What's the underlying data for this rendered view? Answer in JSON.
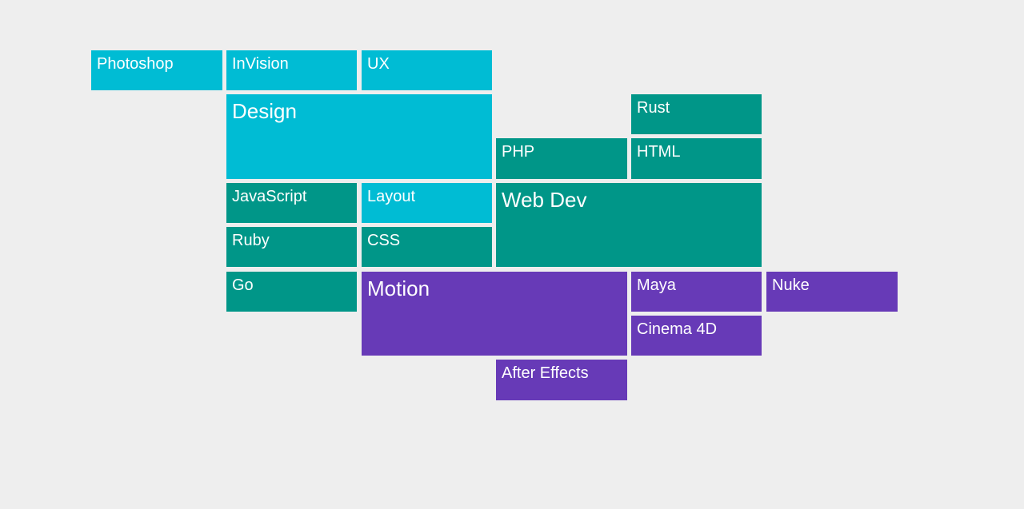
{
  "colors": {
    "design": "#00bcd4",
    "webdev": "#009688",
    "motion": "#673ab7",
    "background": "#eeeeee",
    "text": "#ffffff"
  },
  "tiles": {
    "photoshop": "Photoshop",
    "invision": "InVision",
    "ux": "UX",
    "design": "Design",
    "rust": "Rust",
    "php": "PHP",
    "html": "HTML",
    "javascript": "JavaScript",
    "layout": "Layout",
    "webdev": "Web Dev",
    "ruby": "Ruby",
    "css": "CSS",
    "go": "Go",
    "motion": "Motion",
    "maya": "Maya",
    "nuke": "Nuke",
    "cinema4d": "Cinema 4D",
    "aftereffects": "After Effects"
  }
}
